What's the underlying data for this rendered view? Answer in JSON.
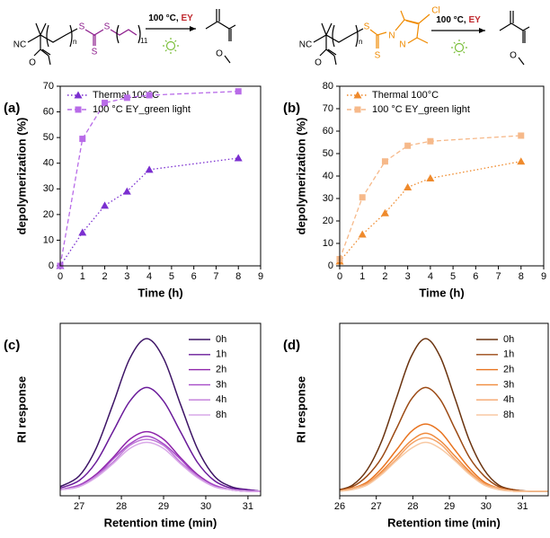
{
  "schemes": [
    {
      "labels": [
        "NC",
        "O",
        "n",
        "S",
        "S",
        "S",
        "11"
      ],
      "condition": "100 °C, ",
      "catalyst": "EY",
      "product_labels": [
        "O"
      ]
    },
    {
      "labels": [
        "NC",
        "O",
        "n",
        "S",
        "S",
        "N",
        "N",
        "Cl"
      ],
      "condition": "100 °C, ",
      "catalyst": "EY",
      "product_labels": [
        "O"
      ]
    }
  ],
  "chart_data": [
    {
      "type": "line",
      "panel": "(a)",
      "xlabel": "Time (h)",
      "ylabel": "depolymerization (%)",
      "x": [
        0,
        1,
        2,
        3,
        4,
        8
      ],
      "xlim": [
        0,
        9
      ],
      "xticks": [
        0,
        1,
        2,
        3,
        4,
        5,
        6,
        7,
        8,
        9
      ],
      "ylim": [
        0,
        70
      ],
      "yticks": [
        0,
        10,
        20,
        30,
        40,
        50,
        60,
        70
      ],
      "legend": "upper left",
      "series": [
        {
          "name": "Thermal 100°C",
          "color": "#7b2fd0",
          "linestyle": "dotted",
          "marker": "triangle",
          "values": [
            0,
            13,
            23.5,
            29,
            37.5,
            42
          ]
        },
        {
          "name": "100 °C  EY_green light",
          "color": "#b86be8",
          "linestyle": "dashed",
          "marker": "square",
          "values": [
            0,
            49.5,
            63.5,
            65.5,
            66.5,
            68
          ]
        }
      ]
    },
    {
      "type": "line",
      "panel": "(b)",
      "xlabel": "Time (h)",
      "ylabel": "depolymerization (%)",
      "x": [
        0,
        1,
        2,
        3,
        4,
        8
      ],
      "xlim": [
        0,
        9
      ],
      "xticks": [
        0,
        1,
        2,
        3,
        4,
        5,
        6,
        7,
        8,
        9
      ],
      "ylim": [
        0,
        80
      ],
      "yticks": [
        0,
        10,
        20,
        30,
        40,
        50,
        60,
        70,
        80
      ],
      "legend": "upper left",
      "series": [
        {
          "name": "Thermal 100°C",
          "color": "#ef8a2c",
          "linestyle": "dotted",
          "marker": "triangle",
          "values": [
            2,
            14,
            23.5,
            35,
            39,
            46.5
          ]
        },
        {
          "name": "100 °C  EY_green light",
          "color": "#f6b98a",
          "linestyle": "dashed",
          "marker": "square",
          "values": [
            3,
            30.5,
            46.5,
            53.5,
            55.5,
            58
          ]
        }
      ]
    },
    {
      "type": "line",
      "panel": "(c)",
      "xlabel": "Retention time (min)",
      "ylabel": "RI response",
      "smooth": true,
      "x": [
        26.55,
        27,
        27.4,
        27.8,
        28.2,
        28.6,
        29,
        29.4,
        29.8,
        30.2,
        30.6,
        31,
        31.3
      ],
      "xlim": [
        26.55,
        31.3
      ],
      "xticks": [
        27,
        28,
        29,
        30,
        31
      ],
      "ylim": [
        -0.03,
        1.1
      ],
      "legend": "upper right",
      "series": [
        {
          "name": "0h",
          "color": "#3d1466",
          "values": [
            0.03,
            0.1,
            0.28,
            0.57,
            0.87,
            1.0,
            0.87,
            0.57,
            0.28,
            0.1,
            0.03,
            0.01,
            0.0
          ]
        },
        {
          "name": "1h",
          "color": "#6a1b9a",
          "values": [
            0.02,
            0.07,
            0.19,
            0.39,
            0.59,
            0.68,
            0.59,
            0.39,
            0.19,
            0.07,
            0.02,
            0.01,
            0.0
          ]
        },
        {
          "name": "2h",
          "color": "#8e24aa",
          "values": [
            0.01,
            0.04,
            0.11,
            0.22,
            0.34,
            0.39,
            0.34,
            0.22,
            0.11,
            0.04,
            0.01,
            0.0,
            0.0
          ]
        },
        {
          "name": "3h",
          "color": "#a64bc7",
          "values": [
            0.01,
            0.04,
            0.1,
            0.21,
            0.31,
            0.36,
            0.31,
            0.21,
            0.1,
            0.04,
            0.01,
            0.0,
            0.0
          ]
        },
        {
          "name": "4h",
          "color": "#c07ad8",
          "values": [
            0.01,
            0.03,
            0.1,
            0.19,
            0.3,
            0.34,
            0.3,
            0.19,
            0.1,
            0.03,
            0.01,
            0.0,
            0.0
          ]
        },
        {
          "name": "8h",
          "color": "#d9a8e8",
          "values": [
            0.01,
            0.03,
            0.09,
            0.18,
            0.28,
            0.32,
            0.28,
            0.18,
            0.09,
            0.03,
            0.01,
            0.0,
            0.0
          ]
        }
      ]
    },
    {
      "type": "line",
      "panel": "(d)",
      "xlabel": "Retention time (min)",
      "ylabel": "RI response",
      "smooth": true,
      "x": [
        26.0,
        26.35,
        26.75,
        27.15,
        27.55,
        27.95,
        28.35,
        28.75,
        29.15,
        29.55,
        29.95,
        30.35,
        30.75,
        31.15,
        31.7
      ],
      "xlim": [
        26,
        31.7
      ],
      "xticks": [
        26,
        27,
        28,
        29,
        30,
        31
      ],
      "ylim": [
        -0.03,
        1.1
      ],
      "legend": "upper right",
      "series": [
        {
          "name": "0h",
          "color": "#6b3410",
          "values": [
            0.01,
            0.04,
            0.14,
            0.33,
            0.61,
            0.88,
            1.0,
            0.88,
            0.61,
            0.33,
            0.14,
            0.04,
            0.01,
            0.0,
            0.0
          ]
        },
        {
          "name": "1h",
          "color": "#9c4a14",
          "values": [
            0.01,
            0.03,
            0.1,
            0.22,
            0.41,
            0.6,
            0.68,
            0.6,
            0.41,
            0.22,
            0.1,
            0.03,
            0.01,
            0.0,
            0.0
          ]
        },
        {
          "name": "2h",
          "color": "#e8731f",
          "values": [
            0.0,
            0.02,
            0.06,
            0.15,
            0.27,
            0.39,
            0.44,
            0.39,
            0.27,
            0.15,
            0.06,
            0.02,
            0.0,
            0.0,
            0.0
          ]
        },
        {
          "name": "3h",
          "color": "#f08a3c",
          "values": [
            0.0,
            0.02,
            0.05,
            0.13,
            0.23,
            0.33,
            0.38,
            0.33,
            0.23,
            0.13,
            0.05,
            0.02,
            0.0,
            0.0,
            0.0
          ]
        },
        {
          "name": "4h",
          "color": "#f5a66b",
          "values": [
            0.0,
            0.02,
            0.05,
            0.12,
            0.21,
            0.31,
            0.35,
            0.31,
            0.21,
            0.12,
            0.05,
            0.02,
            0.0,
            0.0,
            0.0
          ]
        },
        {
          "name": "8h",
          "color": "#f8c9a3",
          "values": [
            0.0,
            0.01,
            0.04,
            0.11,
            0.2,
            0.28,
            0.32,
            0.28,
            0.2,
            0.11,
            0.04,
            0.01,
            0.0,
            0.0,
            0.0
          ]
        }
      ]
    }
  ]
}
